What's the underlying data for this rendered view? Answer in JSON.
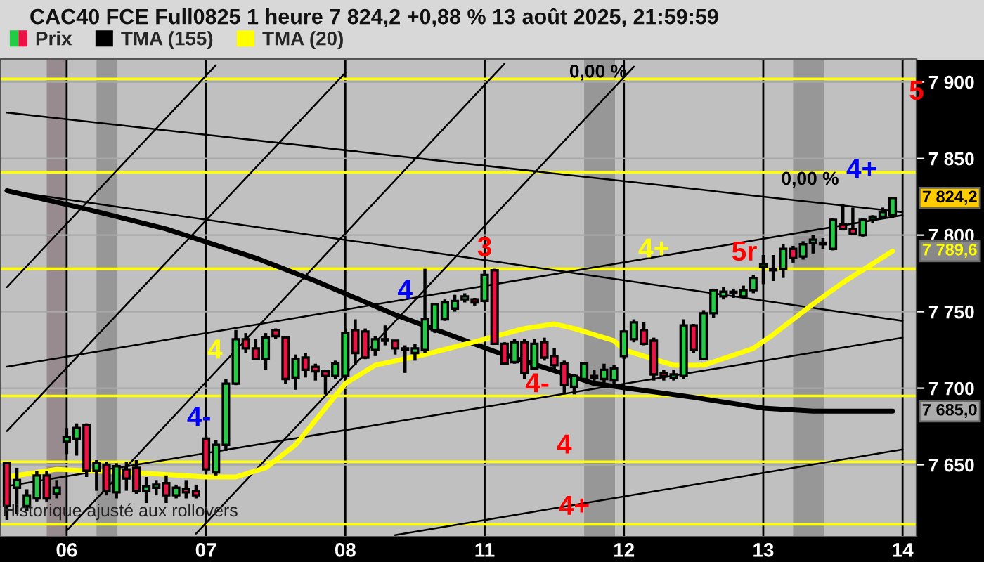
{
  "chart_data": {
    "type": "candlestick",
    "title": "CAC40 FCE Full0825 1 heure 7 824,2 +0,88 % 13 août 2025, 21:59:59",
    "categories": [
      null,
      null,
      null,
      null,
      null,
      null,
      "06",
      null,
      null,
      null,
      null,
      null,
      null,
      null,
      null,
      null,
      null,
      null,
      null,
      null,
      "07",
      null,
      null,
      null,
      null,
      null,
      null,
      null,
      null,
      null,
      null,
      null,
      null,
      null,
      "08",
      null,
      null,
      null,
      null,
      null,
      null,
      null,
      null,
      null,
      null,
      null,
      null,
      null,
      "11",
      null,
      null,
      null,
      null,
      null,
      null,
      null,
      null,
      null,
      null,
      null,
      null,
      null,
      "12",
      null,
      null,
      null,
      null,
      null,
      null,
      null,
      null,
      null,
      null,
      null,
      null,
      null,
      "13",
      null,
      null,
      null,
      null,
      null,
      null,
      null,
      null,
      null,
      null,
      null,
      null,
      null,
      "14"
    ],
    "ylim": [
      7603,
      7915
    ],
    "yticks": [
      {
        "value": 7650,
        "label": "7 650"
      },
      {
        "value": 7700,
        "label": "7 700"
      },
      {
        "value": 7750,
        "label": "7 750"
      },
      {
        "value": 7800,
        "label": "7 800"
      },
      {
        "value": 7850,
        "label": "7 850"
      },
      {
        "value": 7900,
        "label": "7 900"
      }
    ],
    "grid": true,
    "legend": "top left",
    "series": [
      {
        "name": "Prix",
        "ohlc": [
          [
            7651,
            7652,
            7614,
            7623
          ],
          [
            7635,
            7648,
            7618,
            7640
          ],
          [
            7623,
            7634,
            7620,
            7630
          ],
          [
            7628,
            7646,
            7626,
            7643
          ],
          [
            7643,
            7646,
            7626,
            7628
          ],
          [
            7631,
            7640,
            7628,
            7635
          ],
          [
            7665,
            7674,
            7657,
            7668
          ],
          [
            7667,
            7677,
            7656,
            7674
          ],
          [
            7676,
            7677,
            7642,
            7646
          ],
          [
            7646,
            7653,
            7633,
            7651
          ],
          [
            7650,
            7652,
            7630,
            7633
          ],
          [
            7632,
            7651,
            7628,
            7649
          ],
          [
            7647,
            7652,
            7633,
            7641
          ],
          [
            7648,
            7653,
            7631,
            7633
          ],
          [
            7633,
            7642,
            7625,
            7636
          ],
          [
            7635,
            7640,
            7630,
            7637
          ],
          [
            7638,
            7643,
            7625,
            7630
          ],
          [
            7630,
            7637,
            7628,
            7635
          ],
          [
            7634,
            7640,
            7628,
            7632
          ],
          [
            7633,
            7637,
            7628,
            7630
          ],
          [
            7667,
            7669,
            7645,
            7647
          ],
          [
            7645,
            7666,
            7643,
            7663
          ],
          [
            7663,
            7706,
            7659,
            7703
          ],
          [
            7703,
            7738,
            7702,
            7732
          ],
          [
            7732,
            7736,
            7723,
            7726
          ],
          [
            7726,
            7732,
            7719,
            7719
          ],
          [
            7719,
            7736,
            7712,
            7733
          ],
          [
            7738,
            7739,
            7732,
            7734
          ],
          [
            7733,
            7734,
            7703,
            7706
          ],
          [
            7707,
            7722,
            7699,
            7719
          ],
          [
            7720,
            7723,
            7707,
            7712
          ],
          [
            7714,
            7716,
            7705,
            7711
          ],
          [
            7711,
            7712,
            7696,
            7708
          ],
          [
            7708,
            7718,
            7706,
            7716
          ],
          [
            7708,
            7739,
            7706,
            7736
          ],
          [
            7738,
            7745,
            7715,
            7723
          ],
          [
            7737,
            7739,
            7719,
            7720
          ],
          [
            7725,
            7734,
            7721,
            7732
          ],
          [
            7732,
            7741,
            7728,
            7731
          ],
          [
            7731,
            7731,
            7722,
            7726
          ],
          [
            7726,
            7728,
            7710,
            7725
          ],
          [
            7723,
            7729,
            7718,
            7726
          ],
          [
            7725,
            7778,
            7723,
            7745
          ],
          [
            7738,
            7755,
            7736,
            7755
          ],
          [
            7745,
            7758,
            7744,
            7756
          ],
          [
            7752,
            7761,
            7750,
            7757
          ],
          [
            7758,
            7762,
            7756,
            7760
          ],
          [
            7758,
            7759,
            7754,
            7756
          ],
          [
            7757,
            7777,
            7756,
            7774
          ],
          [
            7777,
            7778,
            7729,
            7729
          ],
          [
            7729,
            7730,
            7716,
            7716
          ],
          [
            7717,
            7732,
            7716,
            7730
          ],
          [
            7730,
            7732,
            7706,
            7710
          ],
          [
            7713,
            7732,
            7712,
            7729
          ],
          [
            7730,
            7733,
            7718,
            7720
          ],
          [
            7721,
            7726,
            7712,
            7715
          ],
          [
            7716,
            7718,
            7696,
            7702
          ],
          [
            7701,
            7709,
            7696,
            7708
          ],
          [
            7706,
            7717,
            7705,
            7716
          ],
          [
            7707,
            7712,
            7704,
            7708
          ],
          [
            7706,
            7716,
            7703,
            7712
          ],
          [
            7705,
            7715,
            7703,
            7713
          ],
          [
            7721,
            7738,
            7719,
            7737
          ],
          [
            7732,
            7745,
            7730,
            7743
          ],
          [
            7738,
            7743,
            7728,
            7729
          ],
          [
            7731,
            7733,
            7705,
            7709
          ],
          [
            7710,
            7712,
            7705,
            7708
          ],
          [
            7707,
            7712,
            7705,
            7709
          ],
          [
            7708,
            7745,
            7706,
            7741
          ],
          [
            7741,
            7742,
            7723,
            7725
          ],
          [
            7719,
            7751,
            7719,
            7749
          ],
          [
            7749,
            7765,
            7746,
            7764
          ],
          [
            7760,
            7766,
            7758,
            7763
          ],
          [
            7762,
            7765,
            7759,
            7763
          ],
          [
            7760,
            7767,
            7759,
            7764
          ],
          [
            7764,
            7774,
            7762,
            7772
          ],
          [
            7779,
            7787,
            7768,
            7781
          ],
          [
            7777,
            7787,
            7770,
            7778
          ],
          [
            7778,
            7794,
            7772,
            7791
          ],
          [
            7791,
            7793,
            7782,
            7785
          ],
          [
            7786,
            7796,
            7784,
            7794
          ],
          [
            7795,
            7800,
            7788,
            7797
          ],
          [
            7794,
            7798,
            7791,
            7795
          ],
          [
            7791,
            7811,
            7790,
            7810
          ],
          [
            7807,
            7820,
            7803,
            7804
          ],
          [
            7804,
            7818,
            7800,
            7801
          ],
          [
            7800,
            7811,
            7799,
            7810
          ],
          [
            7810,
            7813,
            7808,
            7812
          ],
          [
            7812,
            7818,
            7811,
            7815
          ],
          [
            7813,
            7825,
            7811,
            7824.2
          ],
          null
        ]
      },
      {
        "name": "TMA (155)",
        "type": "line",
        "color": "#000000",
        "values": [
          7829,
          null,
          null,
          null,
          null,
          null,
          null,
          null,
          7817,
          null,
          null,
          null,
          null,
          null,
          null,
          null,
          7804,
          null,
          null,
          null,
          null,
          null,
          null,
          null,
          null,
          7785,
          null,
          null,
          null,
          null,
          null,
          7770,
          null,
          null,
          null,
          null,
          null,
          null,
          null,
          7748,
          null,
          null,
          null,
          null,
          null,
          null,
          null,
          null,
          null,
          7724,
          null,
          null,
          null,
          null,
          null,
          null,
          null,
          null,
          null,
          7703,
          null,
          null,
          null,
          null,
          null,
          null,
          null,
          null,
          null,
          7694,
          null,
          null,
          null,
          null,
          null,
          null,
          7687,
          null,
          null,
          null,
          null,
          7685,
          null,
          null,
          null,
          null,
          null,
          null,
          null,
          7685,
          null
        ]
      },
      {
        "name": "TMA (20)",
        "type": "line",
        "color": "#ffff00",
        "values": [
          7642,
          null,
          null,
          null,
          null,
          7647,
          null,
          null,
          null,
          null,
          null,
          null,
          null,
          null,
          null,
          7644,
          null,
          null,
          null,
          null,
          7642,
          null,
          null,
          7642,
          null,
          null,
          7648,
          null,
          null,
          7663,
          null,
          7679,
          null,
          null,
          7703,
          null,
          null,
          7715,
          null,
          null,
          null,
          null,
          7722,
          null,
          null,
          null,
          null,
          null,
          7732,
          null,
          null,
          null,
          7739,
          null,
          null,
          7742,
          null,
          7739,
          null,
          null,
          null,
          7731,
          7725,
          null,
          null,
          null,
          null,
          7715,
          null,
          null,
          7715,
          null,
          null,
          null,
          null,
          7726,
          null,
          7735,
          null,
          null,
          null,
          7755,
          null,
          null,
          7769,
          null,
          null,
          null,
          null,
          7789.6,
          null
        ]
      },
      {
        "type": "line",
        "color": "#000000",
        "values": [
          7766,
          null,
          null,
          null,
          null,
          null,
          null,
          null,
          null,
          null,
          null,
          null,
          null,
          null,
          null,
          null,
          null,
          null,
          null,
          null,
          null,
          7911,
          null,
          null,
          null,
          null,
          null,
          null,
          null,
          null,
          null,
          null,
          null,
          null,
          null,
          null,
          null,
          null,
          null,
          null,
          null,
          null,
          null,
          null,
          null,
          null,
          null,
          null,
          null,
          null,
          null,
          null,
          null,
          null,
          null,
          null,
          null,
          null,
          null,
          null,
          null,
          null,
          null,
          null,
          null,
          null,
          null,
          null,
          null,
          null,
          null,
          null,
          null,
          null,
          null,
          null,
          null,
          null,
          null,
          null,
          null,
          null,
          null,
          null,
          null,
          null,
          null,
          null,
          null,
          null,
          null
        ]
      },
      {
        "type": "line",
        "color": "#000000",
        "values": [
          7672,
          null,
          null,
          null,
          null,
          null,
          null,
          null,
          null,
          null,
          null,
          null,
          null,
          null,
          null,
          null,
          null,
          null,
          null,
          null,
          null,
          null,
          null,
          null,
          null,
          null,
          null,
          null,
          null,
          null,
          null,
          null,
          null,
          null,
          7906,
          null,
          null,
          null,
          null,
          null,
          null,
          null,
          null,
          null,
          null,
          null,
          null,
          null,
          null,
          null,
          null,
          null,
          null,
          null,
          null,
          null,
          null,
          null,
          null,
          null,
          null,
          null,
          null,
          null,
          null,
          null,
          null,
          null,
          null,
          null,
          null,
          null,
          null,
          null,
          null,
          null,
          null,
          null,
          null,
          null,
          null,
          null,
          null,
          null,
          null,
          null,
          null,
          null,
          null,
          null,
          null
        ]
      },
      {
        "type": "line",
        "color": "#000000",
        "values": [
          null,
          null,
          null,
          null,
          null,
          null,
          7607,
          null,
          null,
          null,
          null,
          null,
          null,
          null,
          null,
          null,
          null,
          null,
          null,
          null,
          null,
          null,
          null,
          null,
          null,
          null,
          null,
          null,
          null,
          null,
          null,
          null,
          null,
          null,
          null,
          null,
          null,
          null,
          null,
          null,
          null,
          null,
          null,
          null,
          null,
          null,
          null,
          null,
          null,
          null,
          7912,
          null,
          null,
          null,
          null,
          null,
          null,
          null,
          null,
          null,
          null,
          null,
          null,
          null,
          null,
          null,
          null,
          null,
          null,
          null,
          null,
          null,
          null,
          null,
          null,
          null,
          null,
          null,
          null,
          null,
          null,
          null,
          null,
          null,
          null,
          null,
          null,
          null,
          null,
          null,
          null
        ]
      },
      {
        "type": "line",
        "color": "#000000",
        "values": [
          null,
          null,
          null,
          null,
          null,
          null,
          null,
          null,
          null,
          null,
          null,
          null,
          null,
          null,
          null,
          null,
          null,
          null,
          null,
          7605,
          null,
          null,
          null,
          null,
          null,
          null,
          null,
          null,
          null,
          null,
          null,
          null,
          null,
          null,
          null,
          null,
          null,
          null,
          null,
          null,
          null,
          null,
          null,
          null,
          null,
          null,
          null,
          null,
          null,
          null,
          null,
          null,
          null,
          null,
          null,
          null,
          null,
          null,
          null,
          null,
          null,
          null,
          null,
          7910,
          null,
          null,
          null,
          null,
          null,
          null,
          null,
          null,
          null,
          null,
          null,
          null,
          null,
          null,
          null,
          null,
          null,
          null,
          null,
          null,
          null,
          null,
          null,
          null,
          null,
          null,
          null
        ]
      },
      {
        "type": "line",
        "color": "#000000",
        "values": [
          null,
          null,
          null,
          null,
          null,
          null,
          null,
          null,
          null,
          null,
          null,
          null,
          null,
          null,
          null,
          null,
          null,
          null,
          null,
          null,
          null,
          null,
          null,
          null,
          null,
          null,
          null,
          null,
          null,
          null,
          null,
          null,
          null,
          null,
          null,
          null,
          null,
          null,
          null,
          7604,
          null,
          null,
          null,
          null,
          null,
          null,
          null,
          null,
          null,
          null,
          null,
          null,
          null,
          null,
          null,
          null,
          null,
          null,
          null,
          null,
          null,
          null,
          null,
          null,
          null,
          null,
          null,
          null,
          null,
          null,
          null,
          null,
          null,
          null,
          null,
          null,
          null,
          null,
          null,
          null,
          null,
          null,
          null,
          null,
          null,
          null,
          null,
          null,
          null,
          null,
          7660
        ]
      },
      {
        "type": "line",
        "color": "#000000",
        "values": [
          7636,
          null,
          null,
          null,
          null,
          null,
          null,
          null,
          null,
          null,
          null,
          null,
          null,
          null,
          null,
          null,
          null,
          null,
          null,
          null,
          null,
          null,
          null,
          null,
          null,
          null,
          null,
          null,
          null,
          null,
          null,
          null,
          null,
          null,
          null,
          null,
          null,
          null,
          null,
          null,
          null,
          null,
          null,
          null,
          null,
          null,
          null,
          null,
          null,
          null,
          null,
          null,
          null,
          null,
          null,
          null,
          null,
          null,
          null,
          null,
          null,
          null,
          null,
          null,
          null,
          null,
          null,
          null,
          null,
          null,
          null,
          null,
          null,
          null,
          null,
          null,
          null,
          null,
          null,
          null,
          null,
          null,
          null,
          null,
          null,
          null,
          null,
          null,
          null,
          null,
          7733
        ]
      },
      {
        "type": "line",
        "color": "#000000",
        "values": [
          7714,
          null,
          null,
          null,
          null,
          null,
          null,
          null,
          null,
          null,
          null,
          null,
          null,
          null,
          null,
          null,
          null,
          null,
          null,
          null,
          null,
          null,
          null,
          null,
          null,
          null,
          null,
          null,
          null,
          null,
          null,
          null,
          null,
          null,
          null,
          null,
          null,
          null,
          null,
          null,
          null,
          null,
          null,
          null,
          null,
          null,
          null,
          null,
          null,
          null,
          null,
          null,
          null,
          null,
          null,
          null,
          null,
          null,
          null,
          null,
          null,
          null,
          null,
          null,
          null,
          null,
          null,
          null,
          null,
          null,
          null,
          null,
          null,
          null,
          null,
          null,
          null,
          null,
          null,
          null,
          null,
          null,
          null,
          null,
          null,
          null,
          null,
          null,
          null,
          null,
          7813
        ]
      },
      {
        "type": "line",
        "color": "#000000",
        "values": [
          7829,
          null,
          null,
          null,
          null,
          null,
          null,
          null,
          null,
          null,
          null,
          null,
          null,
          null,
          null,
          null,
          null,
          null,
          null,
          null,
          null,
          null,
          null,
          null,
          null,
          null,
          null,
          null,
          null,
          null,
          null,
          null,
          null,
          null,
          null,
          null,
          null,
          null,
          null,
          null,
          null,
          null,
          null,
          null,
          null,
          null,
          null,
          null,
          null,
          null,
          null,
          null,
          null,
          null,
          null,
          null,
          null,
          null,
          null,
          null,
          null,
          null,
          null,
          null,
          null,
          null,
          null,
          null,
          null,
          null,
          null,
          null,
          null,
          null,
          null,
          null,
          null,
          null,
          null,
          null,
          null,
          null,
          null,
          null,
          null,
          null,
          null,
          null,
          null,
          null,
          7744
        ]
      },
      {
        "type": "line",
        "color": "#000000",
        "values": [
          7880,
          null,
          null,
          null,
          null,
          null,
          null,
          null,
          null,
          null,
          null,
          null,
          null,
          null,
          null,
          null,
          null,
          null,
          null,
          null,
          null,
          null,
          null,
          null,
          null,
          null,
          null,
          null,
          null,
          null,
          null,
          null,
          null,
          null,
          null,
          null,
          null,
          null,
          null,
          null,
          null,
          null,
          null,
          null,
          null,
          null,
          null,
          null,
          null,
          null,
          null,
          null,
          null,
          null,
          null,
          null,
          null,
          null,
          null,
          null,
          null,
          null,
          null,
          null,
          null,
          null,
          null,
          null,
          null,
          null,
          null,
          null,
          null,
          null,
          null,
          null,
          null,
          null,
          null,
          null,
          null,
          null,
          null,
          null,
          null,
          null,
          null,
          null,
          null,
          null,
          7815
        ]
      }
    ],
    "ref_lines": [
      {
        "axis": "y",
        "value": 7902,
        "color": "#ffff00"
      },
      {
        "axis": "y",
        "value": 7841,
        "color": "#ffff00"
      },
      {
        "axis": "y",
        "value": 7778,
        "color": "#ffff00"
      },
      {
        "axis": "y",
        "value": 7695,
        "color": "#ffff00"
      },
      {
        "axis": "y",
        "value": 7652,
        "color": "#ffff00"
      },
      {
        "axis": "y",
        "value": 7611,
        "color": "#ffff00"
      }
    ],
    "annotations": [
      "5",
      "4+",
      "4+",
      "5r",
      "3",
      "4",
      "4",
      "4-",
      "4-",
      "4",
      "4+",
      "0,00 %",
      "0,00 %",
      "7 824,2",
      "7 789,6",
      "7 685,0",
      "Historique ajusté aux rollovers"
    ]
  }
}
